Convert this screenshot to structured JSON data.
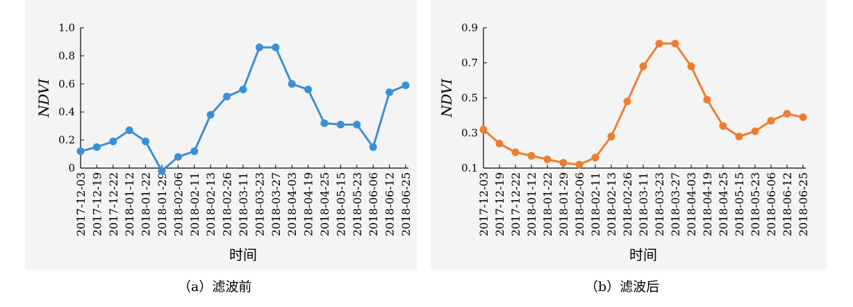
{
  "chart_data": [
    {
      "type": "line",
      "caption": "（a）滤波前",
      "xlabel": "时间",
      "ylabel": "NDVI",
      "ylim": [
        0,
        1.0
      ],
      "yticks": [
        "0",
        "0.2",
        "0.4",
        "0.6",
        "0.8",
        "1.0"
      ],
      "color": "#3a8fd6",
      "x": [
        "2017-12-03",
        "2017-12-19",
        "2017-12-22",
        "2018-01-12",
        "2018-01-22",
        "2018-01-29",
        "2018-02-06",
        "2018-02-11",
        "2018-02-13",
        "2018-02-26",
        "2018-03-11",
        "2018-03-23",
        "2018-03-27",
        "2018-04-03",
        "2018-04-19",
        "2018-04-25",
        "2018-05-15",
        "2018-05-23",
        "2018-06-06",
        "2018-06-12",
        "2018-06-25"
      ],
      "values": [
        0.12,
        0.15,
        0.19,
        0.27,
        0.19,
        -0.02,
        0.08,
        0.12,
        0.38,
        0.51,
        0.56,
        0.86,
        0.86,
        0.6,
        0.56,
        0.32,
        0.31,
        0.31,
        0.15,
        0.54,
        0.59
      ]
    },
    {
      "type": "line",
      "caption": "（b）滤波后",
      "xlabel": "时间",
      "ylabel": "NDVI",
      "ylim": [
        0.1,
        0.9
      ],
      "yticks": [
        "0.1",
        "0.3",
        "0.5",
        "0.7",
        "0.9"
      ],
      "color": "#ed7d31",
      "x": [
        "2017-12-03",
        "2017-12-19",
        "2017-12-22",
        "2018-01-12",
        "2018-01-22",
        "2018-01-29",
        "2018-02-06",
        "2018-02-11",
        "2018-02-13",
        "2018-02-26",
        "2018-03-11",
        "2018-03-23",
        "2018-03-27",
        "2018-04-03",
        "2018-04-19",
        "2018-04-25",
        "2018-05-15",
        "2018-05-23",
        "2018-06-06",
        "2018-06-12",
        "2018-06-25"
      ],
      "values": [
        0.32,
        0.24,
        0.19,
        0.17,
        0.15,
        0.13,
        0.12,
        0.16,
        0.28,
        0.48,
        0.68,
        0.81,
        0.81,
        0.68,
        0.49,
        0.34,
        0.28,
        0.31,
        0.37,
        0.41,
        0.39
      ]
    }
  ]
}
